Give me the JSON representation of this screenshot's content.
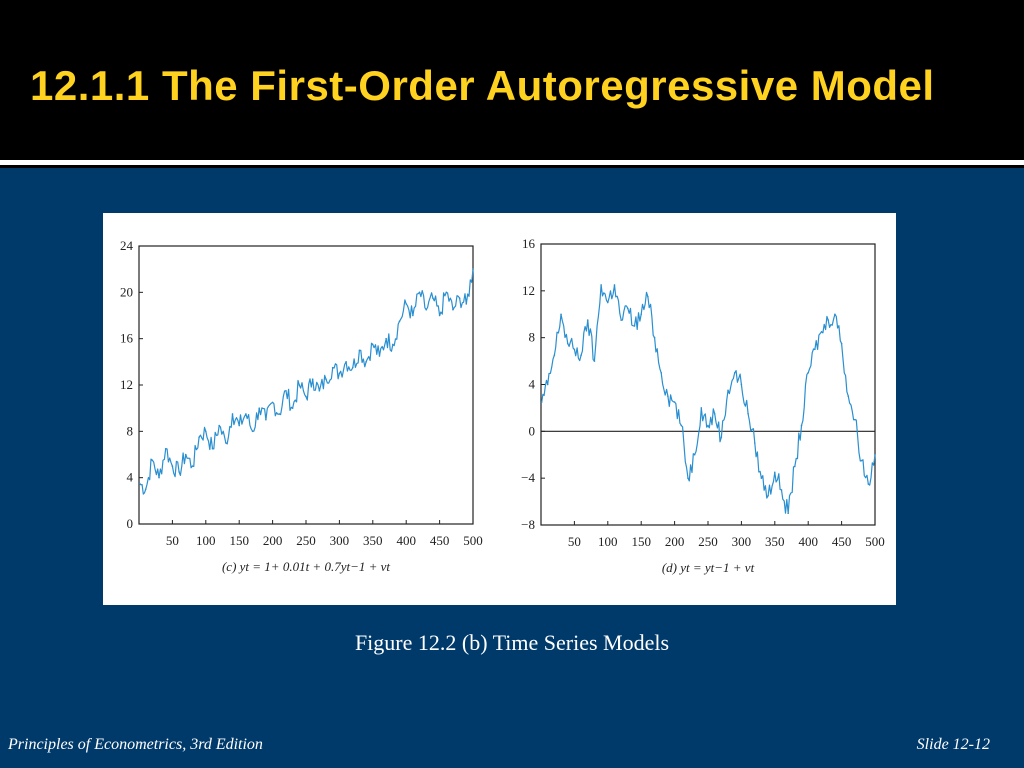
{
  "slide": {
    "title": "12.1.1 The First-Order Autoregressive Model",
    "caption": "Figure 12.2 (b) Time Series Models",
    "footer_left": "Principles of Econometrics, 3rd Edition",
    "footer_right": "Slide 12-12"
  },
  "colors": {
    "title": "#ffd21f",
    "background": "#003a6b",
    "series": "#2a8fd0"
  },
  "chart_data": [
    {
      "type": "line",
      "panel": "c",
      "caption": "(c) yt = 1+ 0.01t + 0.7yt−1 + vt",
      "xlim": [
        0,
        500
      ],
      "ylim": [
        0,
        24
      ],
      "xticks": [
        50,
        100,
        150,
        200,
        250,
        300,
        350,
        400,
        450,
        500
      ],
      "yticks": [
        0,
        4,
        8,
        12,
        16,
        20,
        24
      ],
      "grid": false,
      "series": [
        {
          "x": [
            1,
            10,
            20,
            30,
            40,
            50,
            60,
            70,
            80,
            90,
            100,
            110,
            120,
            130,
            140,
            150,
            160,
            170,
            180,
            190,
            200,
            210,
            220,
            230,
            240,
            250,
            260,
            270,
            280,
            290,
            300,
            310,
            320,
            330,
            340,
            350,
            360,
            370,
            380,
            390,
            400,
            410,
            420,
            430,
            440,
            450,
            460,
            470,
            480,
            490,
            500
          ],
          "y": [
            3.5,
            3.0,
            5.5,
            4.0,
            6.5,
            5.0,
            4.5,
            6.0,
            5.0,
            7.5,
            8.0,
            6.5,
            8.5,
            7.0,
            9.5,
            8.5,
            9.5,
            8.0,
            10.0,
            9.0,
            10.5,
            9.5,
            11.5,
            10.0,
            12.0,
            11.0,
            12.5,
            11.5,
            12.5,
            13.5,
            13.0,
            14.0,
            13.5,
            15.0,
            14.0,
            15.5,
            14.5,
            16.0,
            15.5,
            17.5,
            19.0,
            18.0,
            20.0,
            18.5,
            19.5,
            18.0,
            20.0,
            18.5,
            19.5,
            19.0,
            22.0
          ]
        }
      ]
    },
    {
      "type": "line",
      "panel": "d",
      "caption": "(d) yt = yt−1 + vt",
      "xlim": [
        0,
        500
      ],
      "ylim": [
        -8,
        16
      ],
      "xticks": [
        50,
        100,
        150,
        200,
        250,
        300,
        350,
        400,
        450,
        500
      ],
      "yticks": [
        -8,
        -4,
        0,
        4,
        8,
        12,
        16
      ],
      "zero_line": 0,
      "grid": false,
      "series": [
        {
          "x": [
            1,
            10,
            20,
            30,
            40,
            50,
            60,
            70,
            80,
            90,
            100,
            110,
            120,
            130,
            140,
            150,
            160,
            170,
            180,
            190,
            200,
            210,
            220,
            230,
            240,
            250,
            260,
            270,
            280,
            290,
            300,
            310,
            320,
            330,
            340,
            350,
            360,
            370,
            380,
            390,
            400,
            410,
            420,
            430,
            440,
            450,
            460,
            470,
            480,
            490,
            500
          ],
          "y": [
            2.5,
            4.0,
            6.5,
            10.0,
            7.5,
            7.0,
            6.5,
            9.5,
            6.0,
            12.5,
            11.0,
            12.5,
            9.5,
            10.5,
            9.0,
            10.0,
            11.5,
            8.0,
            5.0,
            3.0,
            2.5,
            0.5,
            -4.0,
            -2.0,
            2.0,
            0.5,
            1.5,
            -0.5,
            3.5,
            5.0,
            4.0,
            1.5,
            -1.0,
            -4.0,
            -5.5,
            -3.5,
            -5.0,
            -7.0,
            -3.0,
            0.5,
            5.0,
            7.0,
            8.5,
            9.5,
            10.0,
            7.5,
            3.0,
            1.0,
            -2.5,
            -4.5,
            -2.0
          ]
        }
      ]
    }
  ]
}
